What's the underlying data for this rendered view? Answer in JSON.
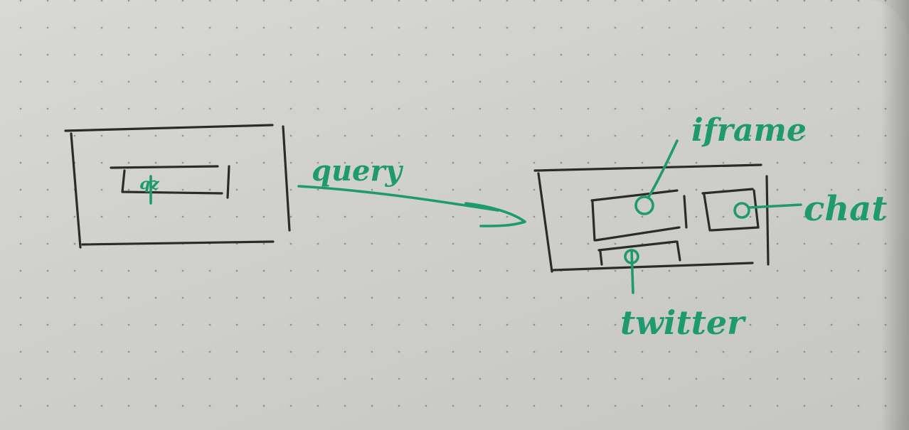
{
  "colors": {
    "paper": "#d4d4d0",
    "black_ink": "#2b2b2b",
    "green_ink": "#1f9a70"
  },
  "left_page": {
    "search_box_text": "qz"
  },
  "arrow": {
    "label": "query"
  },
  "right_page": {
    "labels": {
      "iframe": "iframe",
      "chat": "chat",
      "twitter": "twitter"
    }
  }
}
